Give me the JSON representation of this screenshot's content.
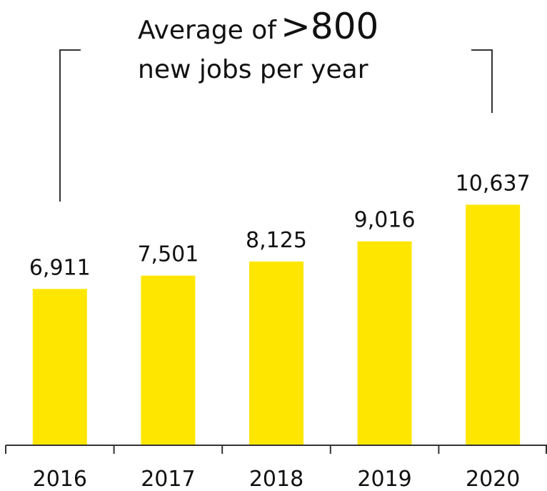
{
  "annotation": {
    "prefix": "Average of",
    "highlight": ">800",
    "line2": "new jobs per year"
  },
  "colors": {
    "bar": "#FFE600",
    "text": "#111111",
    "axis": "#333333"
  },
  "chart_data": {
    "type": "bar",
    "categories": [
      "2016",
      "2017",
      "2018",
      "2019",
      "2020"
    ],
    "values": [
      6911,
      7501,
      8125,
      9016,
      10637
    ],
    "value_labels": [
      "6,911",
      "7,501",
      "8,125",
      "9,016",
      "10,637"
    ],
    "title": "",
    "xlabel": "",
    "ylabel": "",
    "ylim": [
      0,
      14000
    ],
    "grid": false,
    "legend": "none"
  }
}
